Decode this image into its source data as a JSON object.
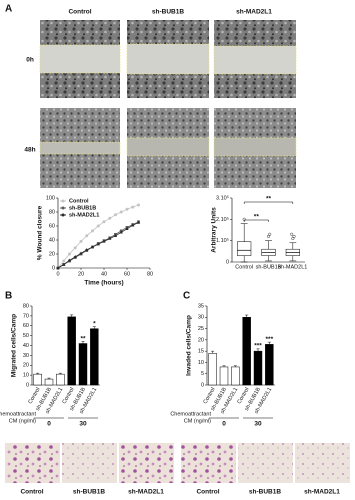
{
  "panel_labels": [
    "A",
    "B",
    "C"
  ],
  "wound_images": {
    "columns": [
      "Control",
      "sh-BUB1B",
      "sh-MAD2L1"
    ],
    "rows": [
      "0h",
      "48h"
    ]
  },
  "micrographs": [
    {
      "labels": [
        "Control",
        "sh-BUB1B",
        "sh-MAD2L1"
      ]
    },
    {
      "labels": [
        "Control",
        "sh-BUB1B",
        "sh-MAD2L1"
      ]
    }
  ],
  "chart_data": [
    {
      "type": "line",
      "y_label": "% Wound closure",
      "x_label": "Time (hours)",
      "xlim": [
        0,
        80
      ],
      "xticks": [
        0,
        20,
        40,
        60,
        80
      ],
      "ylim": [
        0,
        100
      ],
      "yticks": [
        0,
        20,
        40,
        60,
        80,
        100
      ],
      "legend": "upper-left",
      "x": [
        0,
        5,
        10,
        15,
        20,
        25,
        30,
        35,
        40,
        45,
        50,
        55,
        60,
        65,
        70
      ],
      "series": [
        {
          "name": "Control",
          "color": "#c4c4c4",
          "marker": "circle",
          "values": [
            0,
            10,
            20,
            29,
            38,
            46,
            53,
            60,
            66,
            71,
            76,
            80,
            84,
            87,
            90
          ]
        },
        {
          "name": "sh-BUB1B",
          "color": "#5a5a5a",
          "marker": "square",
          "values": [
            0,
            5,
            10,
            15,
            20,
            25,
            30,
            35,
            39,
            43,
            48,
            53,
            58,
            62,
            66
          ]
        },
        {
          "name": "sh-MAD2L1",
          "color": "#2a2a2a",
          "marker": "triangle",
          "values": [
            0,
            5,
            11,
            16,
            21,
            26,
            30,
            34,
            38,
            42,
            46,
            51,
            56,
            61,
            65
          ]
        }
      ]
    },
    {
      "type": "box",
      "y_label": "Arbitrary Units",
      "categories": [
        "Control",
        "sh-BUB1B",
        "sh-MAD2L1"
      ],
      "ylim": [
        0,
        300000
      ],
      "yticks": [
        0,
        {
          "value": 100000,
          "label": "1.10⁵"
        },
        {
          "value": 200000,
          "label": "2.10⁵"
        },
        {
          "value": 300000,
          "label": "3.10⁵"
        }
      ],
      "boxes": [
        {
          "min": 0,
          "q1": 30000,
          "median": 55000,
          "q3": 95000,
          "max": 180000,
          "outliers": [
            200000
          ]
        },
        {
          "min": 5000,
          "q1": 30000,
          "median": 45000,
          "q3": 60000,
          "max": 100000,
          "outliers": [
            120000,
            130000
          ]
        },
        {
          "min": 5000,
          "q1": 30000,
          "median": 45000,
          "q3": 60000,
          "max": 90000,
          "outliers": [
            110000,
            120000,
            130000
          ]
        }
      ],
      "brackets": [
        {
          "label": "**",
          "categories": [
            "Control",
            "sh-BUB1B"
          ]
        },
        {
          "label": "**",
          "categories": [
            "Control",
            "sh-MAD2L1"
          ]
        }
      ]
    },
    {
      "type": "bar",
      "y_label": "Migrated cells/Camp",
      "categories": [
        "Control",
        "sh-BUB1B",
        "sh-MAD2L1",
        "Control",
        "sh-BUB1B",
        "sh-MAD2L1"
      ],
      "values": [
        11,
        6,
        11,
        69,
        42,
        57
      ],
      "errors": [
        1,
        1,
        1,
        2,
        2,
        2
      ],
      "colors": [
        "#ffffff",
        "#ffffff",
        "#ffffff",
        "#000000",
        "#000000",
        "#000000"
      ],
      "annotations": [
        null,
        null,
        null,
        null,
        "**",
        "*"
      ],
      "ylim": [
        0,
        80
      ],
      "yticks": [
        0,
        10,
        20,
        30,
        40,
        50,
        60,
        70,
        80
      ],
      "group_title": [
        "Chemoattractant",
        "CM (ng/ml)"
      ],
      "groups": [
        "0",
        "30"
      ]
    },
    {
      "type": "bar",
      "y_label": "Invaded cells/Camp",
      "categories": [
        "Control",
        "sh-BUB1B",
        "sh-MAD2L1",
        "Control",
        "sh-BUB1B",
        "sh-MAD2L1"
      ],
      "values": [
        14,
        8,
        8,
        30,
        15,
        18
      ],
      "errors": [
        1,
        0.5,
        0.5,
        1,
        1,
        1
      ],
      "colors": [
        "#ffffff",
        "#ffffff",
        "#ffffff",
        "#000000",
        "#000000",
        "#000000"
      ],
      "annotations": [
        null,
        null,
        null,
        null,
        "***",
        "***"
      ],
      "ylim": [
        0,
        35
      ],
      "yticks": [
        0,
        5,
        10,
        15,
        20,
        25,
        30,
        35
      ],
      "group_title": [
        "Chemoattractant",
        "CM (ng/ml)"
      ],
      "groups": [
        "0",
        "30"
      ]
    }
  ]
}
